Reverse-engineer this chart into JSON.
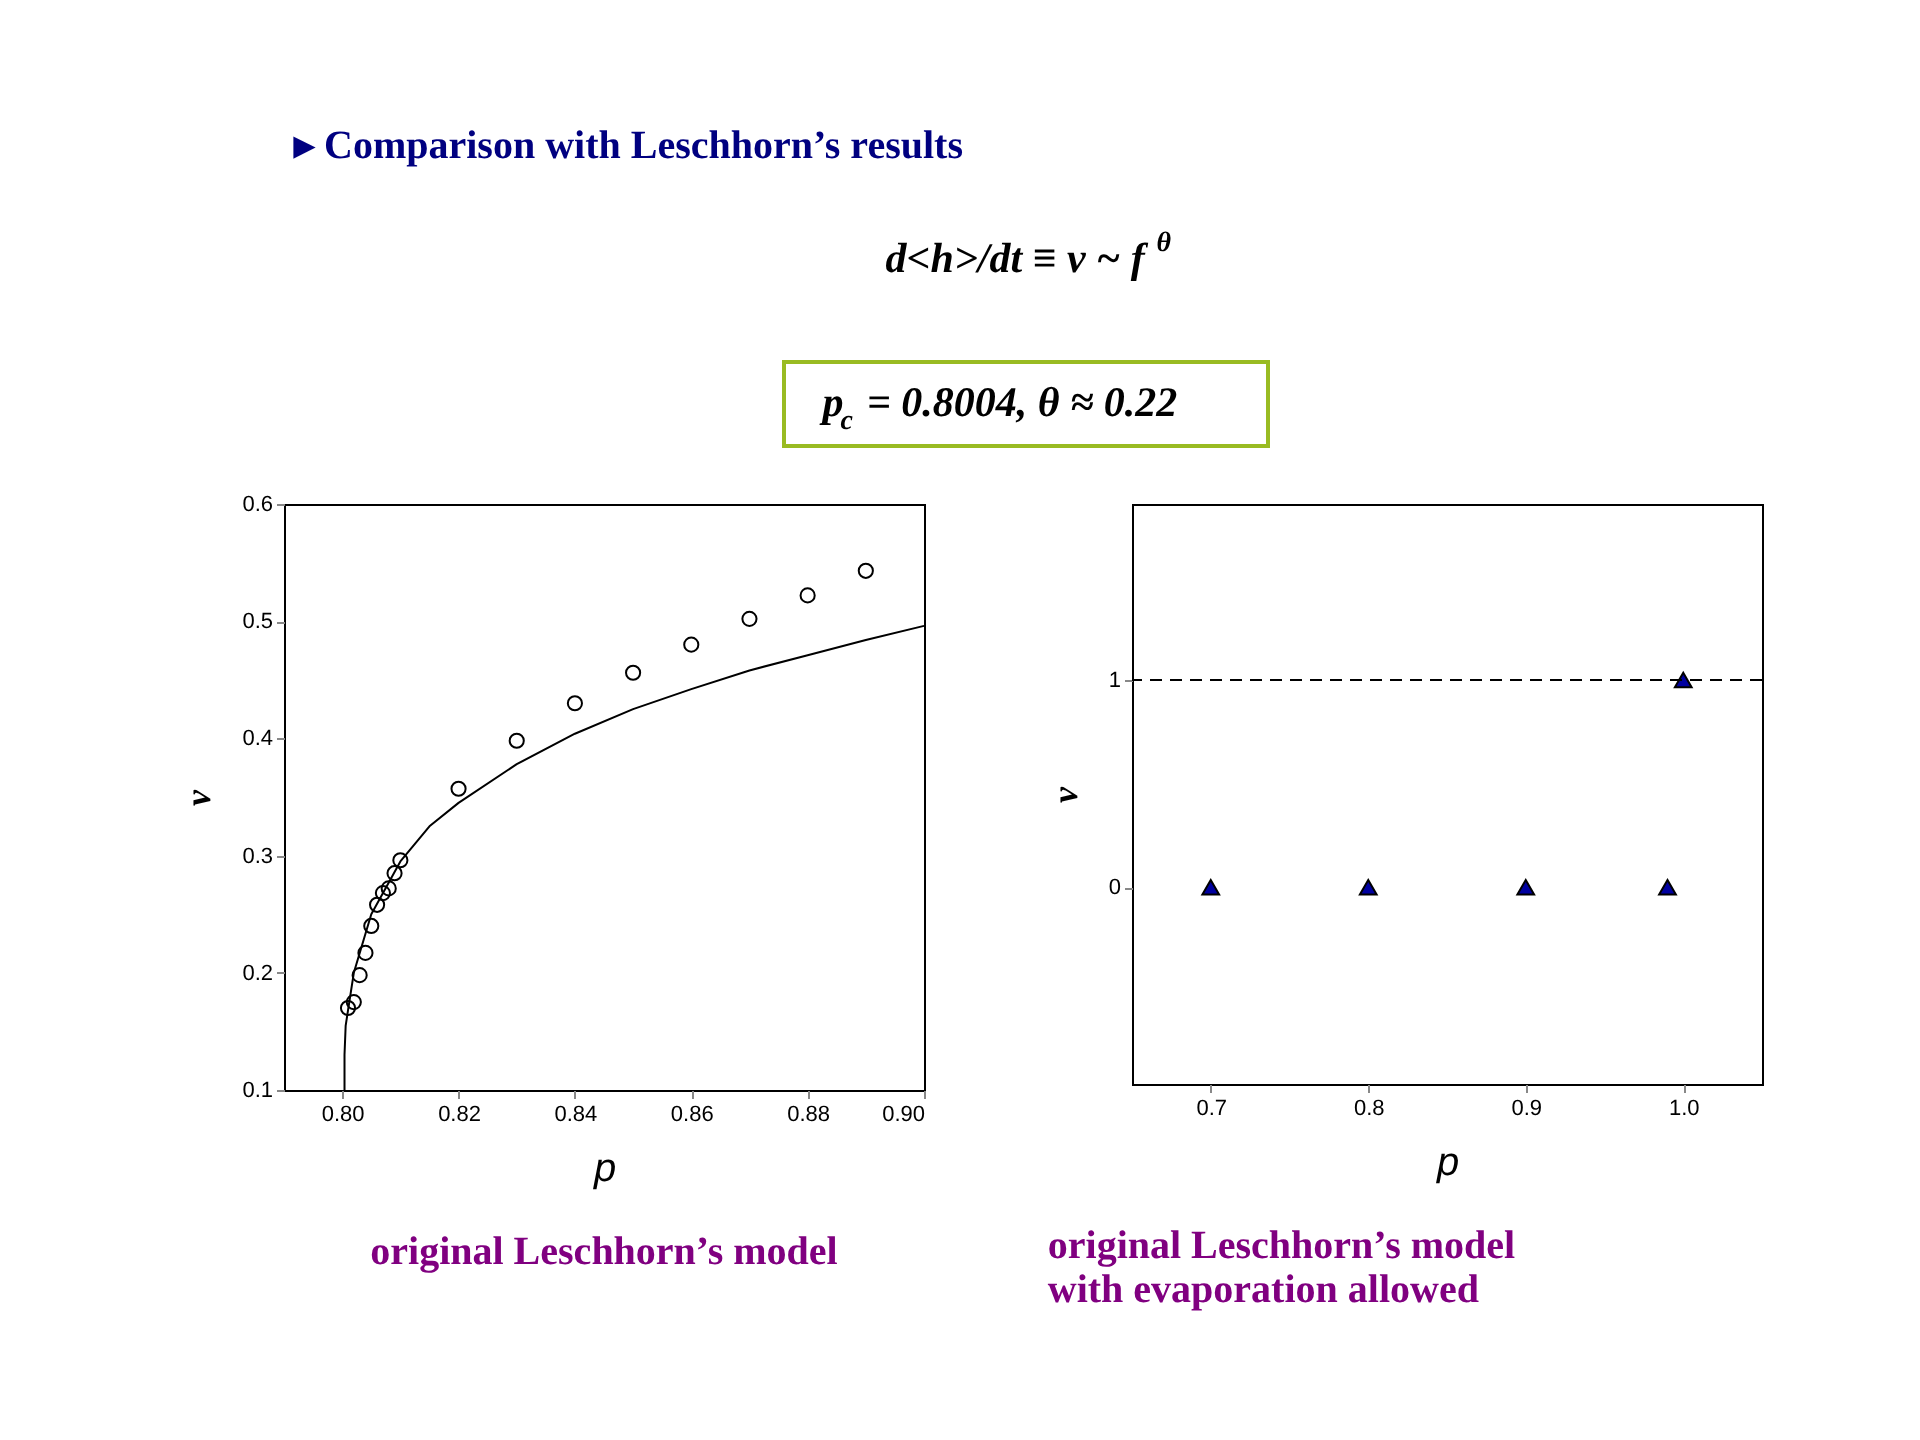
{
  "chart_data": [
    {
      "type": "scatter",
      "title": "▸ Comparison with Leschhorn’s results",
      "annotations": [
        "d<h>/dt ≡ v ~ f$^{θ}$",
        "p$_{c}$ = 0.8004,   θ ≈ 0.22",
        "original Leschhorn’s model"
      ],
      "xlabel": "p",
      "ylabel": "v",
      "xlim": [
        0.79,
        0.9
      ],
      "xticks": [
        {
          "value": 0.8,
          "label": "0.80"
        },
        {
          "value": 0.82,
          "label": "0.82"
        },
        {
          "value": 0.84,
          "label": "0.84"
        },
        {
          "value": 0.86,
          "label": "0.86"
        },
        {
          "value": 0.88,
          "label": "0.88"
        },
        {
          "value": 0.9,
          "label": "0.90"
        }
      ],
      "ylim": [
        0.1,
        0.6
      ],
      "yticks": [
        0.1,
        0.2,
        0.3,
        0.4,
        0.5,
        0.6
      ],
      "grid": false,
      "series": [
        {
          "marker": "circle",
          "color": "#000000",
          "x": [
            0.801,
            0.802,
            0.803,
            0.804,
            0.805,
            0.806,
            0.807,
            0.808,
            0.809,
            0.81,
            0.82,
            0.83,
            0.84,
            0.85,
            0.86,
            0.87,
            0.88,
            0.89
          ],
          "values": [
            0.17,
            0.175,
            0.198,
            0.217,
            0.24,
            0.258,
            0.268,
            0.272,
            0.285,
            0.296,
            0.357,
            0.398,
            0.43,
            0.456,
            0.48,
            0.502,
            0.522,
            0.543
          ]
        },
        {
          "type": "line",
          "marker": "none",
          "line_style": "solid",
          "color": "#000000",
          "x": [
            0.8004,
            0.8004,
            0.8006,
            0.802,
            0.805,
            0.81,
            0.815,
            0.82,
            0.83,
            0.84,
            0.85,
            0.86,
            0.87,
            0.88,
            0.89,
            0.9
          ],
          "values": [
            0.1,
            0.13,
            0.155,
            0.2,
            0.25,
            0.295,
            0.325,
            0.345,
            0.378,
            0.404,
            0.425,
            0.442,
            0.458,
            0.471,
            0.484,
            0.496
          ]
        }
      ]
    },
    {
      "type": "scatter",
      "annotations": [
        "original Leschhorn’s model",
        "with evaporation allowed"
      ],
      "xlabel": "p",
      "ylabel": "v",
      "xlim": [
        0.65,
        1.05
      ],
      "xticks": [
        0.7,
        0.8,
        0.9,
        {
          "value": 1.0,
          "label": "1.0"
        }
      ],
      "ylim": [
        -0.95,
        1.85
      ],
      "yticks": [
        0,
        1
      ],
      "grid": false,
      "ref_lines": [
        {
          "axis": "y",
          "value": 1,
          "label": null,
          "color": "#000000",
          "line_style": "dashed"
        }
      ],
      "series": [
        {
          "marker": "triangle",
          "color": "#0000a0",
          "x": [
            0.7,
            0.8,
            0.9,
            0.99,
            1.0
          ],
          "values": [
            0,
            0,
            0,
            0,
            1
          ]
        }
      ]
    }
  ]
}
